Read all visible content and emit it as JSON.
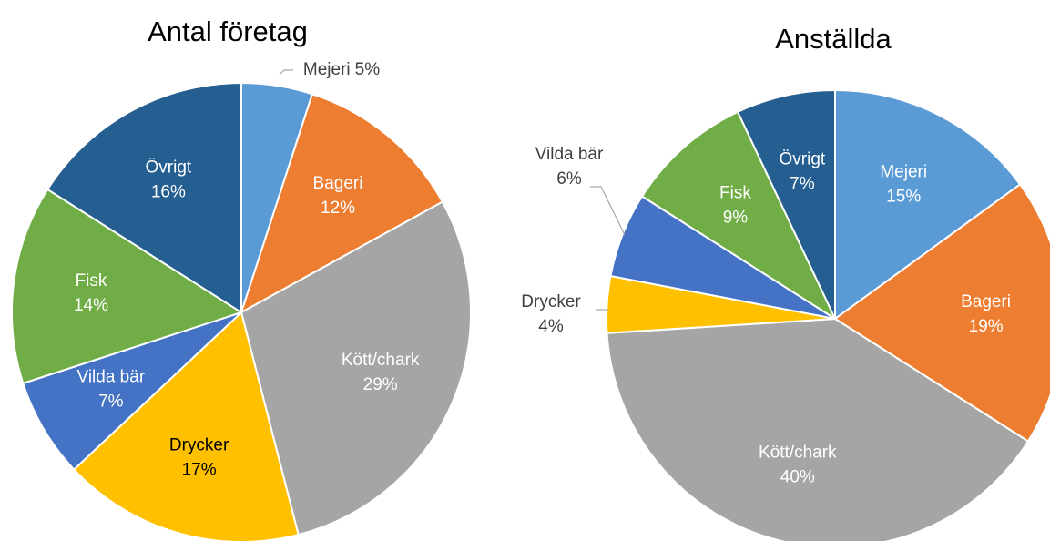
{
  "chart_data": [
    {
      "type": "pie",
      "title": "Antal företag",
      "categories": [
        "Mejeri",
        "Bageri",
        "Kött/chark",
        "Drycker",
        "Vilda bär",
        "Fisk",
        "Övrigt"
      ],
      "values": [
        5,
        12,
        29,
        17,
        7,
        14,
        16
      ],
      "value_labels": [
        "5%",
        "12%",
        "29%",
        "17%",
        "7%",
        "14%",
        "16%"
      ],
      "colors": [
        "#5b9bd5",
        "#ed7d31",
        "#a5a5a5",
        "#ffc000",
        "#4472c4",
        "#70ad47",
        "#255e91"
      ]
    },
    {
      "type": "pie",
      "title": "Anställda",
      "categories": [
        "Mejeri",
        "Bageri",
        "Kött/chark",
        "Drycker",
        "Vilda bär",
        "Fisk",
        "Övrigt"
      ],
      "values": [
        15,
        19,
        40,
        4,
        6,
        9,
        7
      ],
      "value_labels": [
        "15%",
        "19%",
        "40%",
        "4%",
        "6%",
        "9%",
        "7%"
      ],
      "colors": [
        "#5b9bd5",
        "#ed7d31",
        "#a5a5a5",
        "#ffc000",
        "#4472c4",
        "#70ad47",
        "#255e91"
      ]
    }
  ]
}
